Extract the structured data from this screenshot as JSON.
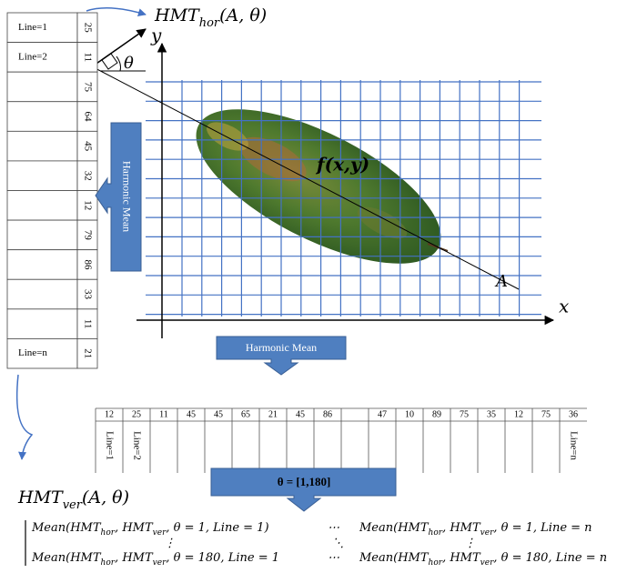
{
  "left_table": {
    "rows": [
      {
        "label": "Line=1",
        "value": "25"
      },
      {
        "label": "Line=2",
        "value": "11"
      },
      {
        "value": "75"
      },
      {
        "value": "64"
      },
      {
        "value": "45"
      },
      {
        "value": "32"
      },
      {
        "value": "12"
      },
      {
        "value": "79"
      },
      {
        "value": "86"
      },
      {
        "value": "33"
      },
      {
        "value": "11"
      },
      {
        "label": "Line=n",
        "value": "21"
      }
    ]
  },
  "hmt_hor": [
    "HMT",
    "hor",
    "(A, θ)"
  ],
  "hmt_ver": [
    "HMT",
    "ver",
    "(A, θ)"
  ],
  "axes": {
    "x": "x",
    "y": "y",
    "angle": "θ",
    "line": "A",
    "function": "f(x,y)"
  },
  "arrows": {
    "vertical": "Harmonic Mean",
    "horizontal": "Harmonic Mean",
    "range": "θ = [1,180]"
  },
  "bottom_table": {
    "cells": [
      {
        "value": "12",
        "label": "Line=1"
      },
      {
        "value": "25",
        "label": "Line=2"
      },
      {
        "value": "11"
      },
      {
        "value": "45"
      },
      {
        "value": "45"
      },
      {
        "value": "65"
      },
      {
        "value": "21"
      },
      {
        "value": "45"
      },
      {
        "value": "86"
      },
      null,
      {
        "value": "47"
      },
      {
        "value": "10"
      },
      {
        "value": "89"
      },
      {
        "value": "75"
      },
      {
        "value": "35"
      },
      {
        "value": "12"
      },
      {
        "value": "75"
      },
      {
        "value": "36",
        "label": "Line=n"
      }
    ]
  },
  "matrix": {
    "cells": [
      [
        [
          "Mean(HMT",
          "hor",
          ", HMT",
          "ver",
          ", θ = 1, Line = 1)"
        ],
        [
          "⋯"
        ],
        [
          "Mean(HMT",
          "hor",
          ", HMT",
          "ver",
          ", θ = 1, Line = n"
        ]
      ],
      [
        [
          "⋮"
        ],
        [
          "⋱"
        ],
        [
          "⋮"
        ]
      ],
      [
        [
          "Mean(HMT",
          "hor",
          ", HMT",
          "ver",
          ", θ = 180, Line = 1"
        ],
        [
          "⋯"
        ],
        [
          "Mean(HMT",
          "hor",
          ", HMT",
          "ver",
          ", θ = 180, Line = n"
        ]
      ]
    ]
  }
}
